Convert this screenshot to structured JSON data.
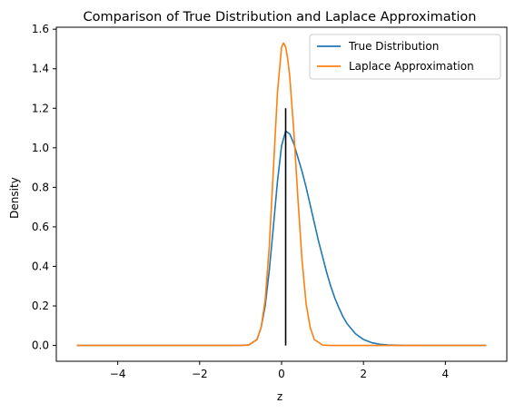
{
  "chart_data": {
    "type": "line",
    "title": "Comparison of True Distribution and Laplace Approximation",
    "xlabel": "z",
    "ylabel": "Density",
    "xlim": [
      -5.5,
      5.5
    ],
    "ylim": [
      -0.08,
      1.61
    ],
    "xticks": [
      -4,
      -2,
      0,
      2,
      4
    ],
    "xtick_labels": [
      "−4",
      "−2",
      "0",
      "2",
      "4"
    ],
    "yticks": [
      0.0,
      0.2,
      0.4,
      0.6,
      0.8,
      1.0,
      1.2,
      1.4,
      1.6
    ],
    "ytick_labels": [
      "0.0",
      "0.2",
      "0.4",
      "0.6",
      "0.8",
      "1.0",
      "1.2",
      "1.4",
      "1.6"
    ],
    "grid": false,
    "legend_position": "top-right",
    "series": [
      {
        "name": "True Distribution",
        "color": "#1f77b4",
        "x": [
          -5.0,
          -1.0,
          -0.8,
          -0.6,
          -0.5,
          -0.4,
          -0.3,
          -0.2,
          -0.1,
          0.0,
          0.1,
          0.2,
          0.3,
          0.4,
          0.5,
          0.6,
          0.7,
          0.8,
          0.9,
          1.0,
          1.1,
          1.2,
          1.3,
          1.4,
          1.5,
          1.6,
          1.8,
          2.0,
          2.2,
          2.4,
          2.6,
          2.8,
          3.0,
          3.5,
          5.0
        ],
        "y": [
          0.0,
          0.0,
          0.003,
          0.03,
          0.09,
          0.2,
          0.38,
          0.6,
          0.83,
          1.01,
          1.085,
          1.07,
          1.02,
          0.95,
          0.88,
          0.8,
          0.71,
          0.62,
          0.53,
          0.45,
          0.37,
          0.3,
          0.24,
          0.19,
          0.145,
          0.11,
          0.06,
          0.03,
          0.014,
          0.006,
          0.0025,
          0.001,
          0.0004,
          0.0,
          0.0
        ]
      },
      {
        "name": "Laplace Approximation",
        "color": "#ff7f0e",
        "x": [
          -5.0,
          -1.0,
          -0.8,
          -0.6,
          -0.5,
          -0.4,
          -0.3,
          -0.2,
          -0.1,
          0.0,
          0.05,
          0.1,
          0.15,
          0.2,
          0.3,
          0.4,
          0.5,
          0.6,
          0.7,
          0.8,
          1.0,
          1.2,
          5.0
        ],
        "y": [
          0.0,
          0.0,
          0.002,
          0.03,
          0.09,
          0.23,
          0.5,
          0.89,
          1.28,
          1.51,
          1.53,
          1.51,
          1.45,
          1.36,
          1.08,
          0.74,
          0.43,
          0.21,
          0.09,
          0.03,
          0.002,
          0.0,
          0.0
        ]
      }
    ],
    "vline": {
      "x": 0.1,
      "ymin": 0.0,
      "ymax": 1.2,
      "color": "#000000"
    }
  }
}
